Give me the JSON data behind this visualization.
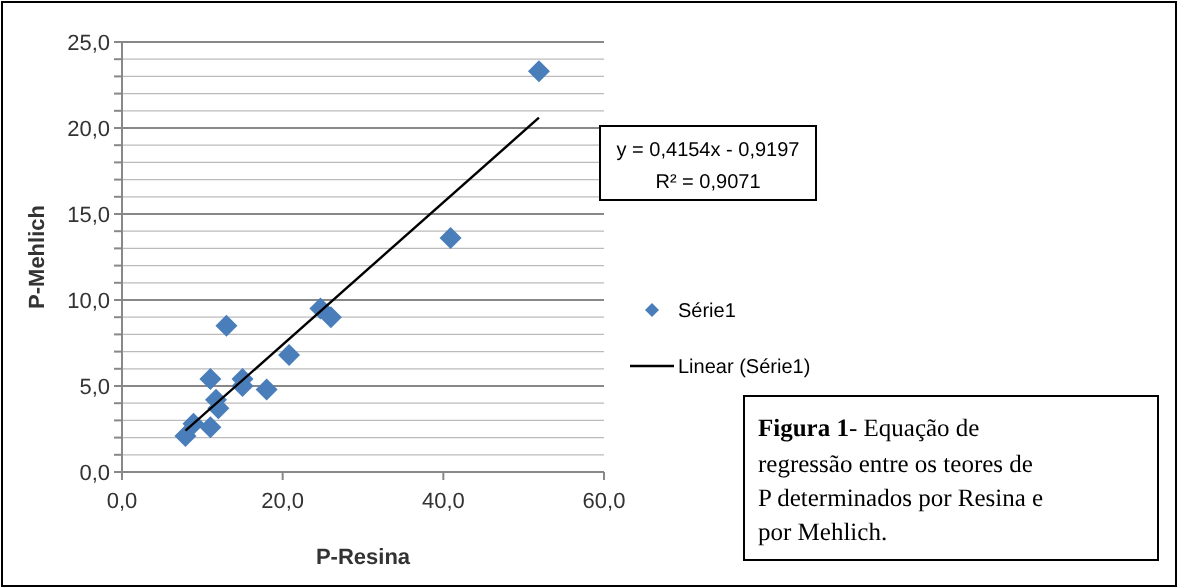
{
  "chart_data": {
    "type": "scatter",
    "xlabel": "P-Resina",
    "ylabel": "P-Mehlich",
    "xlim": [
      0,
      60
    ],
    "ylim": [
      0,
      25
    ],
    "xticks": [
      {
        "value": 0,
        "label": "0,0"
      },
      {
        "value": 20,
        "label": "20,0"
      },
      {
        "value": 40,
        "label": "40,0"
      },
      {
        "value": 60,
        "label": "60,0"
      }
    ],
    "yticks": [
      {
        "value": 0,
        "label": "0,0"
      },
      {
        "value": 1,
        "label": null
      },
      {
        "value": 2,
        "label": null
      },
      {
        "value": 3,
        "label": null
      },
      {
        "value": 4,
        "label": null
      },
      {
        "value": 5,
        "label": "5,0"
      },
      {
        "value": 6,
        "label": null
      },
      {
        "value": 7,
        "label": null
      },
      {
        "value": 8,
        "label": null
      },
      {
        "value": 9,
        "label": null
      },
      {
        "value": 10,
        "label": "10,0"
      },
      {
        "value": 11,
        "label": null
      },
      {
        "value": 12,
        "label": null
      },
      {
        "value": 13,
        "label": null
      },
      {
        "value": 14,
        "label": null
      },
      {
        "value": 15,
        "label": "15,0"
      },
      {
        "value": 16,
        "label": null
      },
      {
        "value": 17,
        "label": null
      },
      {
        "value": 18,
        "label": null
      },
      {
        "value": 19,
        "label": null
      },
      {
        "value": 20,
        "label": "20,0"
      },
      {
        "value": 21,
        "label": null
      },
      {
        "value": 22,
        "label": null
      },
      {
        "value": 23,
        "label": null
      },
      {
        "value": 24,
        "label": null
      },
      {
        "value": 25,
        "label": "25,0"
      }
    ],
    "grid": "y",
    "legend": "right",
    "marker": "diamond",
    "series": [
      {
        "name": "Série1",
        "color": "#4a7ebb",
        "x": [
          51.9,
          40.9,
          24.7,
          26.0,
          13.0,
          20.8,
          11.0,
          15.0,
          15.0,
          18.0,
          11.7,
          12.0,
          11.0,
          8.9,
          7.9
        ],
        "values": [
          23.3,
          13.6,
          9.5,
          9.0,
          8.5,
          6.8,
          5.4,
          5.4,
          5.0,
          4.8,
          4.2,
          3.7,
          2.6,
          2.8,
          2.1
        ]
      },
      {
        "name": "Linear (Série1)",
        "type": "line",
        "color": "#000000",
        "line_style": "solid",
        "marker": "none",
        "x": [
          7.9,
          51.9
        ],
        "values": [
          2.4,
          20.6
        ]
      }
    ],
    "annotations": [
      "y = 0,4154x - 0,9197",
      "R² = 0,9071",
      "Figura 1- Equação de regressão entre os teores de P determinados por Resina e por Mehlich."
    ]
  }
}
